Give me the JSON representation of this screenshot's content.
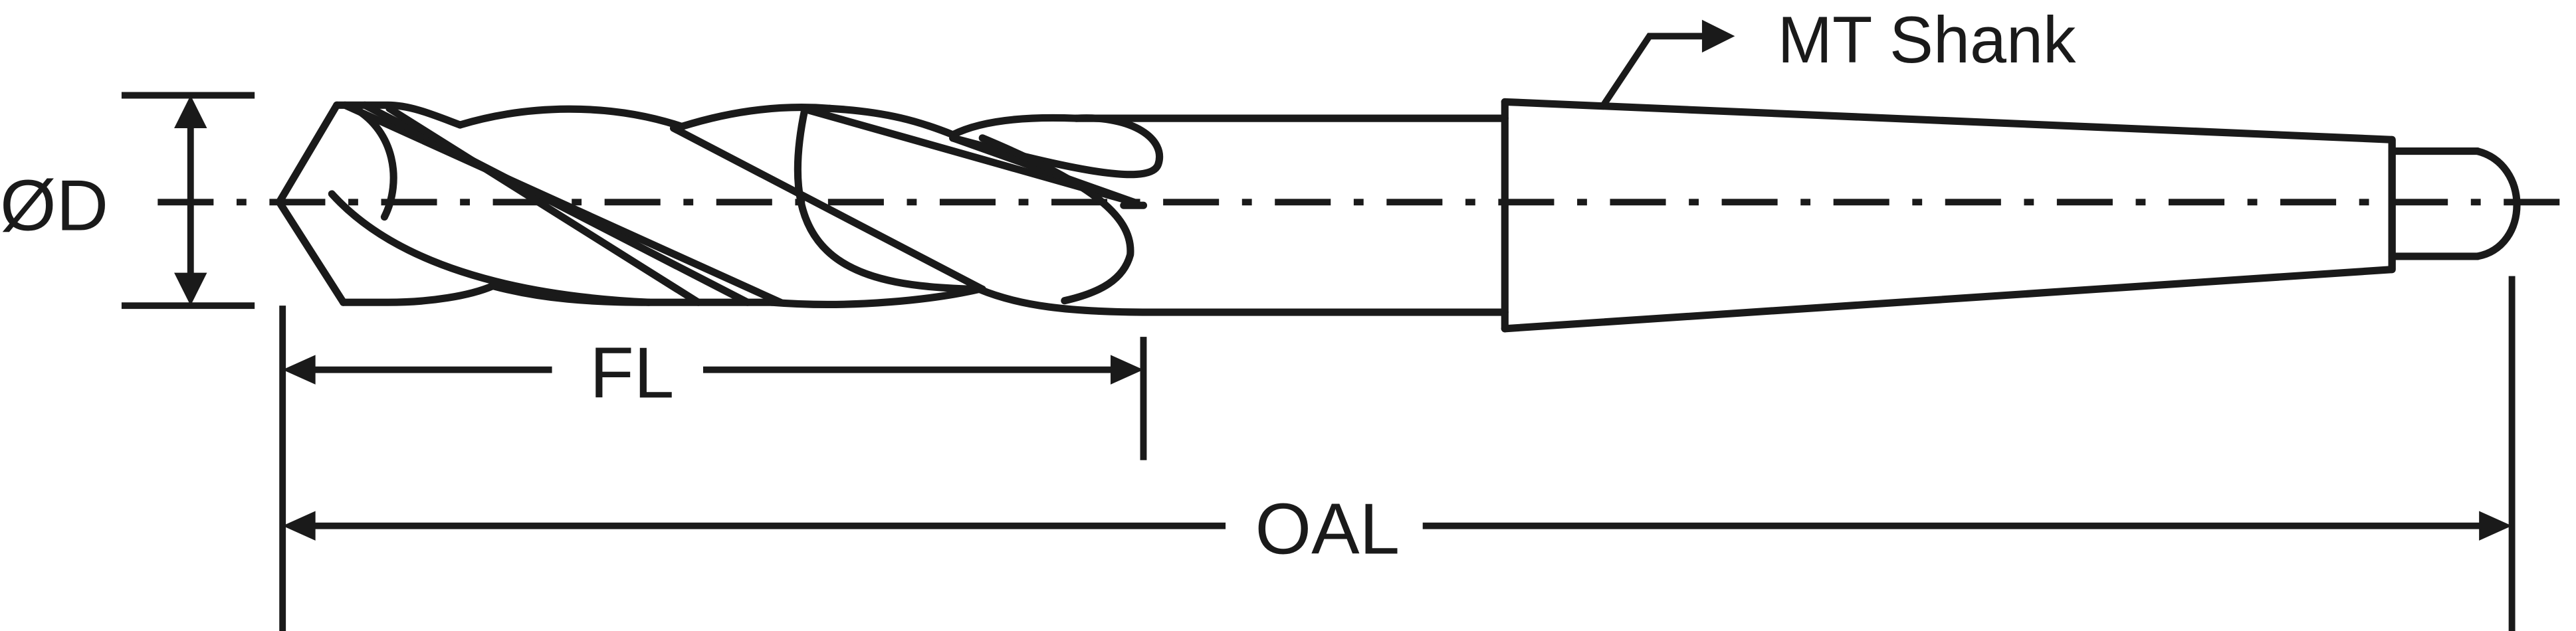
{
  "labels": {
    "diameter": "ØD",
    "flute_length": "FL",
    "overall_length": "OAL",
    "shank": "MT Shank"
  }
}
